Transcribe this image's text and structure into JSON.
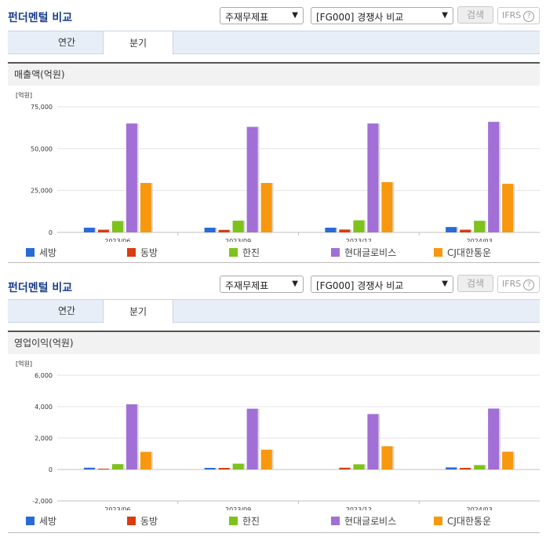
{
  "colors": {
    "세방": "#2a6ad8",
    "동방": "#d83c10",
    "한진": "#7ec21c",
    "현대글로비스": "#a26fd6",
    "CJ대한통운": "#f7980f"
  },
  "panels": [
    {
      "title": "펀더멘털 비교",
      "select1": "주재무제표",
      "select2": "[FG000] 경쟁사 비교",
      "search_label": "검색",
      "ifrs_label": "IFRS",
      "tabs": [
        "연간",
        "분기"
      ],
      "active_tab": 1,
      "section_label": "매출액(억원)"
    },
    {
      "title": "펀더멘털 비교",
      "select1": "주재무제표",
      "select2": "[FG000] 경쟁사 비교",
      "search_label": "검색",
      "ifrs_label": "IFRS",
      "tabs": [
        "연간",
        "분기"
      ],
      "active_tab": 1,
      "section_label": "영업이익(억원)"
    }
  ],
  "chart_data": [
    {
      "type": "bar",
      "unit": "[억원]",
      "categories": [
        "2023/06",
        "2023/09",
        "2023/12",
        "2024/03"
      ],
      "ylim": [
        0,
        75000
      ],
      "yticks": [
        "75,000",
        "50,000",
        "25,000",
        "0"
      ],
      "series": [
        {
          "name": "세방",
          "values": [
            2800,
            2800,
            2800,
            3200
          ]
        },
        {
          "name": "동방",
          "values": [
            1600,
            1500,
            1700,
            1600
          ]
        },
        {
          "name": "한진",
          "values": [
            6800,
            7000,
            7200,
            6900
          ]
        },
        {
          "name": "현대글로비스",
          "values": [
            65000,
            63000,
            65000,
            66000
          ]
        },
        {
          "name": "CJ대한통운",
          "values": [
            29500,
            29500,
            30000,
            29000
          ]
        }
      ]
    },
    {
      "type": "bar",
      "unit": "[억원]",
      "categories": [
        "2023/06",
        "2023/09",
        "2023/12",
        "2024/03"
      ],
      "ylim": [
        -2000,
        6000
      ],
      "yticks": [
        "6,000",
        "4,000",
        "2,000",
        "0",
        "-2,000"
      ],
      "series": [
        {
          "name": "세방",
          "values": [
            110,
            100,
            0,
            130
          ]
        },
        {
          "name": "동방",
          "values": [
            50,
            100,
            110,
            100
          ]
        },
        {
          "name": "한진",
          "values": [
            340,
            370,
            330,
            280
          ]
        },
        {
          "name": "현대글로비스",
          "values": [
            4150,
            3870,
            3530,
            3880
          ]
        },
        {
          "name": "CJ대한통운",
          "values": [
            1120,
            1260,
            1480,
            1130
          ]
        }
      ]
    }
  ],
  "legend": [
    "세방",
    "동방",
    "한진",
    "현대글로비스",
    "CJ대한통운"
  ]
}
